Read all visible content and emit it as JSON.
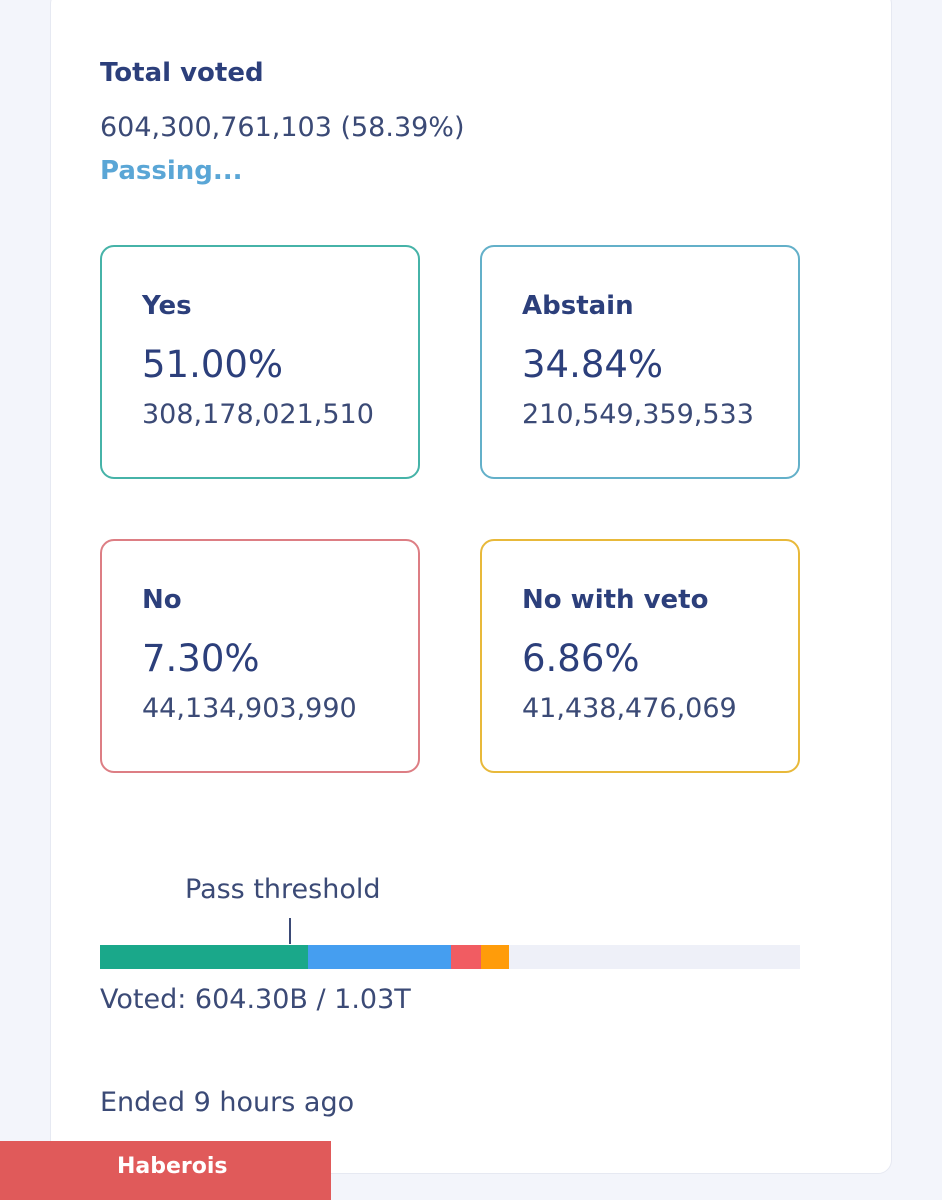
{
  "total": {
    "label": "Total voted",
    "value": "604,300,761,103 (58.39%)",
    "status": "Passing..."
  },
  "options": {
    "yes": {
      "label": "Yes",
      "percent": "51.00%",
      "count": "308,178,021,510",
      "color": "#46b3a8"
    },
    "abstain": {
      "label": "Abstain",
      "percent": "34.84%",
      "count": "210,549,359,533",
      "color": "#63b0c9"
    },
    "no": {
      "label": "No",
      "percent": "7.30%",
      "count": "44,134,903,990",
      "color": "#dd7e84"
    },
    "veto": {
      "label": "No with veto",
      "percent": "6.86%",
      "count": "41,438,476,069",
      "color": "#e8b93a"
    }
  },
  "progress": {
    "threshold_label": "Pass threshold",
    "threshold_fraction": 0.2714,
    "segments": [
      {
        "name": "yes",
        "fraction": 0.2978,
        "color": "#1aa88a"
      },
      {
        "name": "abstain",
        "fraction": 0.2035,
        "color": "#459ef0"
      },
      {
        "name": "no",
        "fraction": 0.0427,
        "color": "#f15c62"
      },
      {
        "name": "veto",
        "fraction": 0.0401,
        "color": "#ff9c0a"
      }
    ],
    "summary": "Voted: 604.30B / 1.03T"
  },
  "ended_text": "Ended 9 hours ago",
  "watermark": "Haberois"
}
